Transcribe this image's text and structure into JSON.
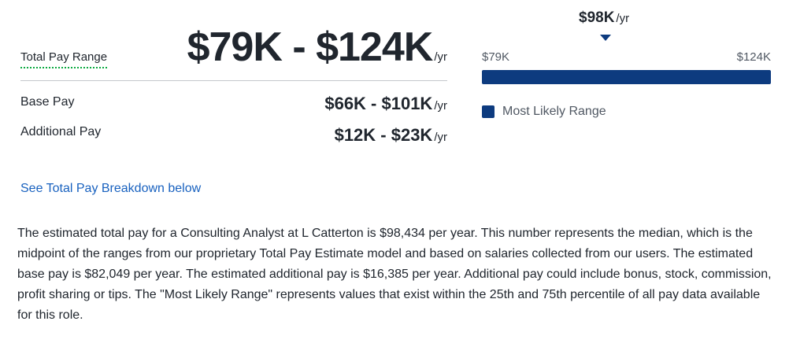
{
  "total_pay": {
    "label": "Total Pay Range",
    "value": "$79K - $124K",
    "unit": "/yr"
  },
  "breakdown": [
    {
      "label": "Base Pay",
      "value": "$66K - $101K",
      "unit": "/yr"
    },
    {
      "label": "Additional Pay",
      "value": "$12K - $23K",
      "unit": "/yr"
    }
  ],
  "link_text": "See Total Pay Breakdown below",
  "range_chart": {
    "median": "$98K",
    "median_unit": "/yr",
    "min_label": "$79K",
    "max_label": "$124K",
    "legend_label": "Most Likely Range",
    "bar_color": "#0d3b7f"
  },
  "description": "The estimated total pay for a Consulting Analyst at L Catterton is $98,434 per year. This number represents the median, which is the midpoint of the ranges from our proprietary Total Pay Estimate model and based on salaries collected from our users. The estimated base pay is $82,049 per year. The estimated additional pay is $16,385 per year. Additional pay could include bonus, stock, commission, profit sharing or tips. The \"Most Likely Range\" represents values that exist within the 25th and 75th percentile of all pay data available for this role."
}
